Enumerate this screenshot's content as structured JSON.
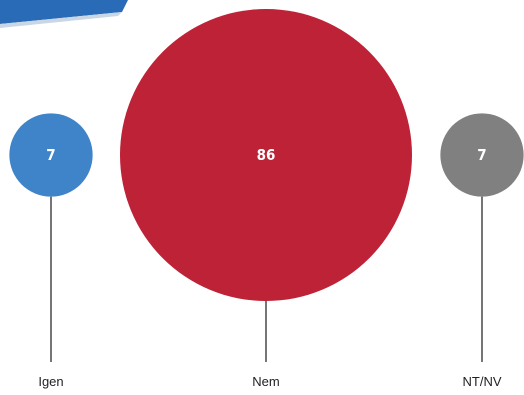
{
  "chart_data": {
    "type": "bubble",
    "categories": [
      "Igen",
      "Nem",
      "NT/NV"
    ],
    "values": [
      7,
      86,
      7
    ],
    "value_labels": [
      "7",
      "86",
      "7"
    ],
    "colors": [
      "#3f84c9",
      "#bd2236",
      "#808080"
    ],
    "title": "",
    "xlabel": "",
    "ylabel": "",
    "legend": "none",
    "grid": false
  },
  "decor": {
    "corner_banner_color": "#2a6bb8"
  }
}
